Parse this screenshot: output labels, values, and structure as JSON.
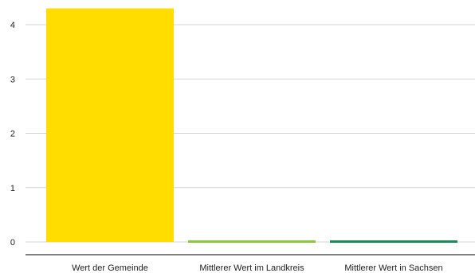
{
  "chart_data": {
    "type": "bar",
    "title": "",
    "xlabel": "",
    "ylabel": "",
    "categories": [
      "Wert der Gemeinde",
      "Mittlerer Wert im Landkreis",
      "Mittlerer Wert in Sachsen"
    ],
    "values": [
      4.3,
      0.02,
      0.02
    ],
    "colors": [
      "#ffdd00",
      "#8cc63f",
      "#1b8a5a"
    ],
    "ylim": [
      0,
      4.35
    ],
    "yticks": [
      0,
      1,
      2,
      3,
      4
    ],
    "grid": true,
    "legend": "none"
  }
}
